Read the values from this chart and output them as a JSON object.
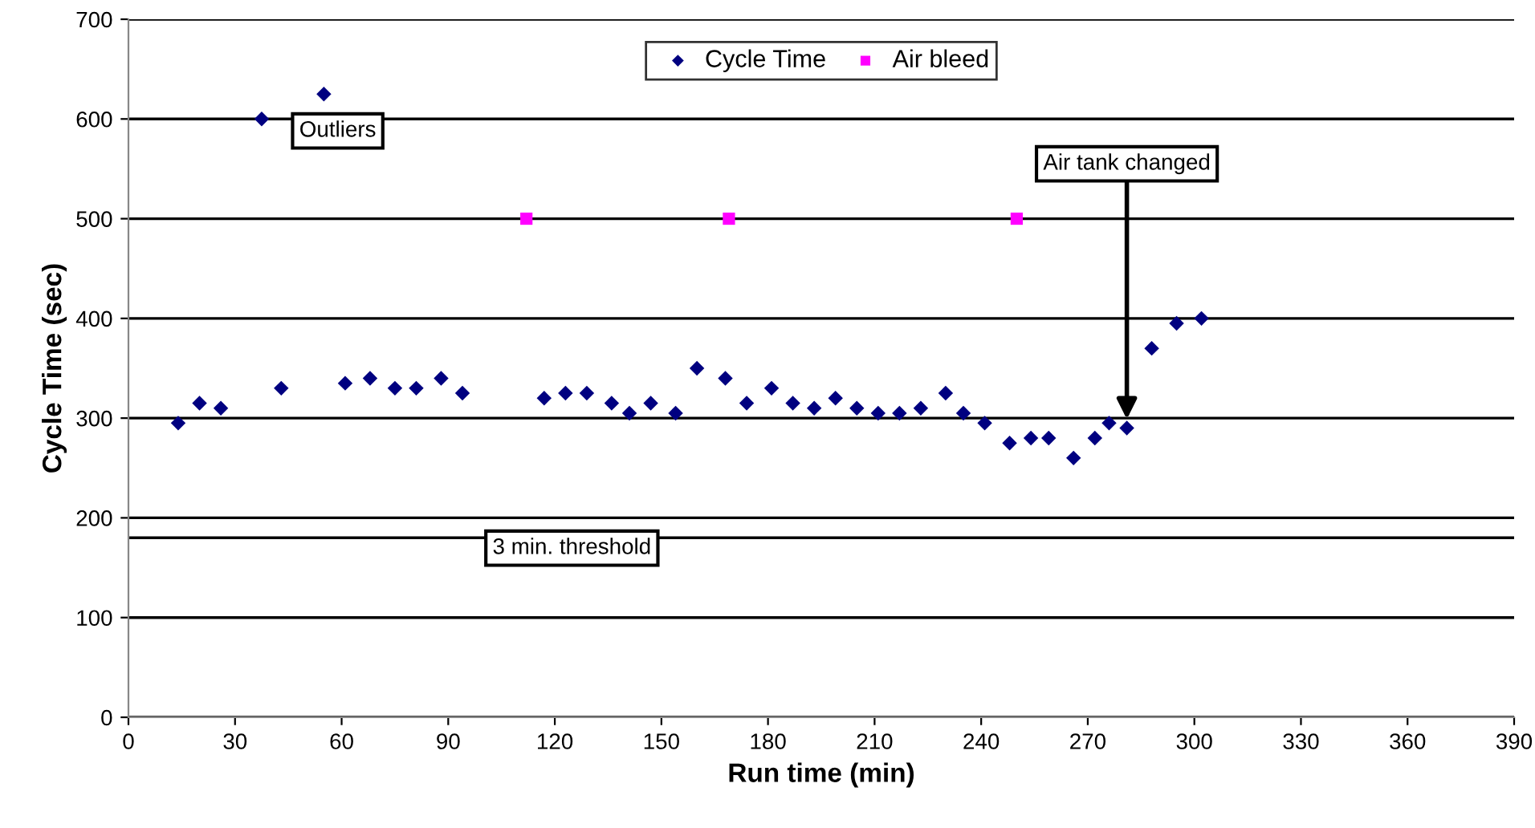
{
  "chart_data": {
    "type": "scatter",
    "xlabel": "Run time (min)",
    "ylabel": "Cycle Time (sec)",
    "series": [
      {
        "name": "Cycle Time",
        "color": "#000080",
        "marker": "diamond",
        "x": [
          14,
          20,
          26,
          37.5,
          43,
          55,
          61,
          68,
          75,
          81,
          88,
          94,
          117,
          123,
          129,
          136,
          141,
          147,
          154,
          160,
          168,
          174,
          181,
          187,
          193,
          199,
          205,
          211,
          217,
          223,
          230,
          235,
          241,
          248,
          254,
          259,
          266,
          272,
          276,
          281,
          288,
          295,
          302
        ],
        "values": [
          295,
          315,
          310,
          600,
          330,
          625,
          335,
          340,
          330,
          330,
          340,
          325,
          320,
          325,
          325,
          315,
          305,
          315,
          305,
          350,
          340,
          315,
          330,
          315,
          310,
          320,
          310,
          305,
          305,
          310,
          325,
          305,
          295,
          275,
          280,
          280,
          260,
          280,
          295,
          290,
          370,
          395,
          400
        ]
      },
      {
        "name": "Air bleed",
        "color": "#ff00ff",
        "marker": "square",
        "x": [
          112,
          169,
          250
        ],
        "values": [
          500,
          500,
          500
        ]
      }
    ],
    "xlim": [
      0,
      390
    ],
    "xticks": [
      0,
      30,
      60,
      90,
      120,
      150,
      180,
      210,
      240,
      270,
      300,
      330,
      360,
      390
    ],
    "ylim": [
      0,
      700
    ],
    "yticks": [
      0,
      100,
      200,
      300,
      400,
      500,
      600,
      700
    ],
    "grid": "y",
    "legend": "top",
    "ref_lines": [
      {
        "axis": "y",
        "value": 180,
        "label": "3 min. threshold"
      }
    ],
    "annotations": [
      "Outliers",
      {
        "text": "Air tank changed",
        "x": 281,
        "y": 290
      }
    ]
  }
}
